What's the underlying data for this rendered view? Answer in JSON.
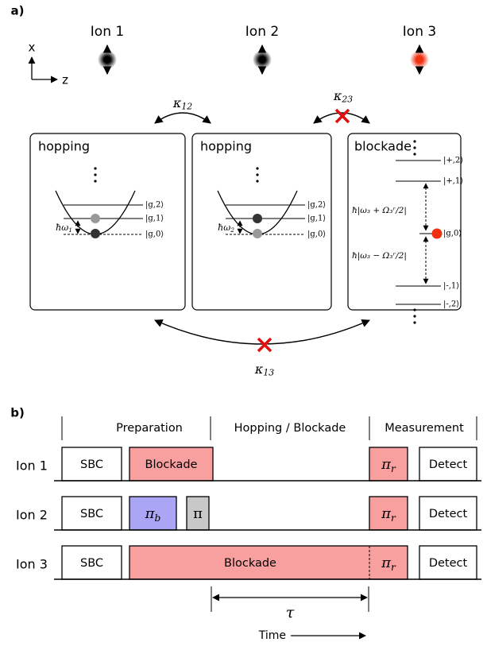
{
  "panel_a": {
    "label": "a)",
    "ions": [
      "Ion 1",
      "Ion 2",
      "Ion 3"
    ],
    "axes": {
      "x": "x",
      "z": "z"
    },
    "couplings": {
      "k12": {
        "base": "κ",
        "sub": "12"
      },
      "k23": {
        "base": "κ",
        "sub": "23"
      },
      "k13": {
        "base": "κ",
        "sub": "13"
      }
    },
    "boxes": [
      {
        "title": "hopping",
        "levels": [
          "|g,2⟩",
          "|g,1⟩",
          "|g,0⟩"
        ],
        "spacing": {
          "base": "ħω",
          "sub": "1"
        }
      },
      {
        "title": "hopping",
        "levels": [
          "|g,2⟩",
          "|g,1⟩",
          "|g,0⟩"
        ],
        "spacing": {
          "base": "ħω",
          "sub": "2"
        }
      }
    ],
    "blockade_box": {
      "title": "blockade",
      "levels": [
        "|+,2⟩",
        "|+,1⟩",
        "|g,0⟩",
        "|-,1⟩",
        "|-,2⟩"
      ],
      "upper_gap": "ħ|ω₃ + Ω₃ʳ/2|",
      "lower_gap": "ħ|ω₃ − Ω₃ʳ/2|"
    }
  },
  "panel_b": {
    "label": "b)",
    "phases": [
      "Preparation",
      "Hopping / Blockade",
      "Measurement"
    ],
    "rows": [
      {
        "name": "Ion 1",
        "pulses": [
          "SBC",
          "Blockade",
          {
            "base": "π",
            "sub": "r"
          },
          "Detect"
        ]
      },
      {
        "name": "Ion 2",
        "pulses": [
          "SBC",
          {
            "base": "π",
            "sub": "b"
          },
          "π",
          {
            "base": "π",
            "sub": "r"
          },
          "Detect"
        ]
      },
      {
        "name": "Ion 3",
        "pulses": [
          "SBC",
          "Blockade",
          {
            "base": "π",
            "sub": "r"
          },
          "Detect"
        ]
      }
    ],
    "delay": "τ",
    "time": "Time"
  }
}
